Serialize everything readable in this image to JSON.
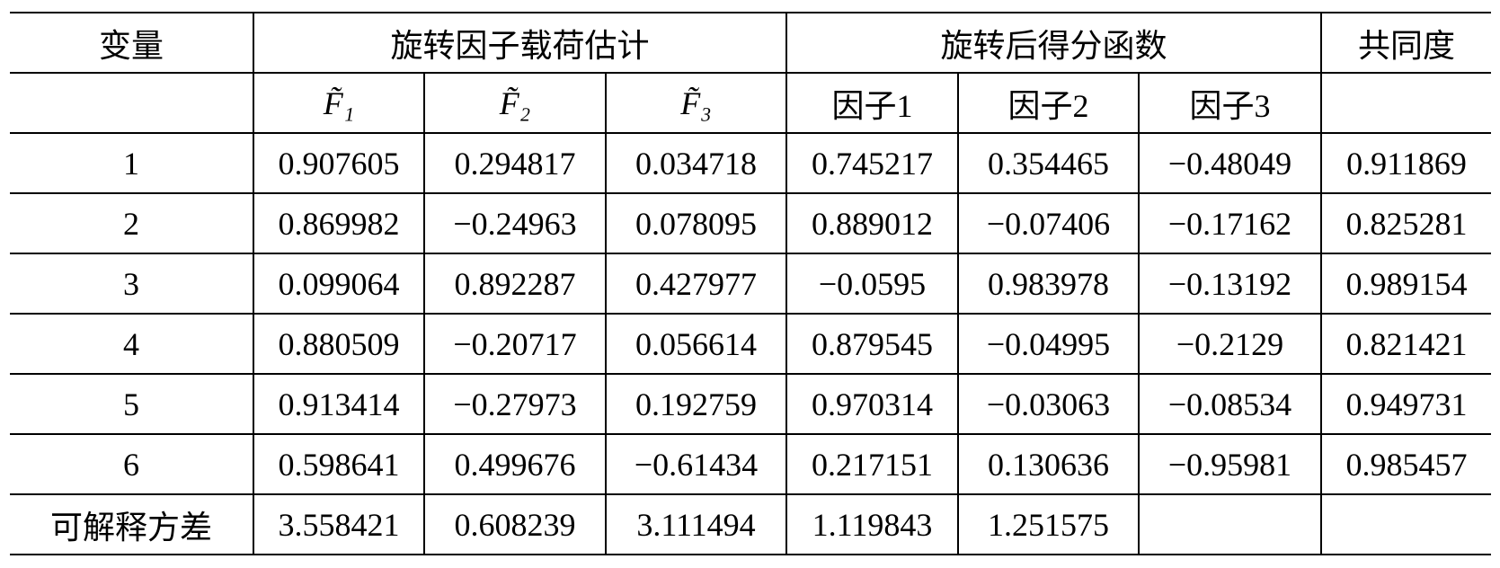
{
  "table": {
    "header": {
      "top": [
        "变量",
        "旋转因子载荷估计",
        "旋转后得分函数",
        "共同度"
      ],
      "sub": [
        "F̃₁",
        "F̃₂",
        "F̃₃",
        "因子1",
        "因子2",
        "因子3"
      ]
    },
    "rows": [
      [
        "1",
        "0.907605",
        "0.294817",
        "0.034718",
        "0.745217",
        "0.354465",
        "−0.48049",
        "0.911869"
      ],
      [
        "2",
        "0.869982",
        "−0.24963",
        "0.078095",
        "0.889012",
        "−0.07406",
        "−0.17162",
        "0.825281"
      ],
      [
        "3",
        "0.099064",
        "0.892287",
        "0.427977",
        "−0.0595",
        "0.983978",
        "−0.13192",
        "0.989154"
      ],
      [
        "4",
        "0.880509",
        "−0.20717",
        "0.056614",
        "0.879545",
        "−0.04995",
        "−0.2129",
        "0.821421"
      ],
      [
        "5",
        "0.913414",
        "−0.27973",
        "0.192759",
        "0.970314",
        "−0.03063",
        "−0.08534",
        "0.949731"
      ],
      [
        "6",
        "0.598641",
        "0.499676",
        "−0.61434",
        "0.217151",
        "0.130636",
        "−0.95981",
        "0.985457"
      ],
      [
        "可解释方差",
        "3.558421",
        "0.608239",
        "3.111494",
        "1.119843",
        "1.251575"
      ]
    ]
  }
}
